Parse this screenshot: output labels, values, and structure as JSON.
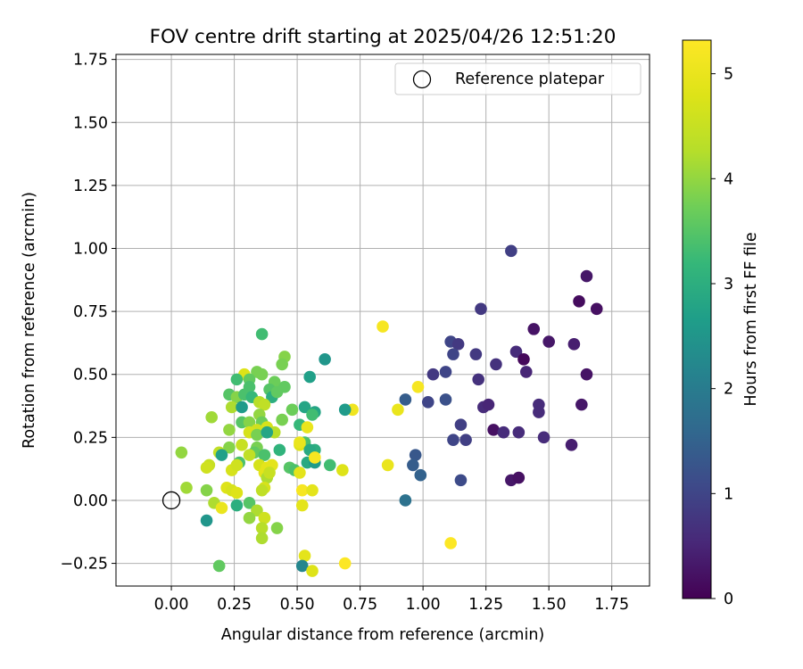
{
  "chart_data": {
    "type": "scatter",
    "title": "FOV centre drift starting at 2025/04/26 12:51:20",
    "xlabel": "Angular distance from reference (arcmin)",
    "ylabel": "Rotation from reference (arcmin)",
    "xlim": [
      -0.22,
      1.9
    ],
    "ylim": [
      -0.34,
      1.77
    ],
    "xticks": [
      "0.00",
      "0.25",
      "0.50",
      "0.75",
      "1.00",
      "1.25",
      "1.50",
      "1.75"
    ],
    "yticks": [
      "−0.25",
      "0.00",
      "0.25",
      "0.50",
      "0.75",
      "1.00",
      "1.25",
      "1.50",
      "1.75"
    ],
    "grid": true,
    "legend_position": "upper-right",
    "legend": [
      {
        "label": "Reference platepar",
        "marker": "open-circle",
        "x": 0.0,
        "y": 0.0
      }
    ],
    "colorbar": {
      "label": "Hours from first FF file",
      "colormap": "viridis",
      "range": [
        0,
        5.32
      ],
      "ticks": [
        "0",
        "1",
        "2",
        "3",
        "4",
        "5"
      ]
    },
    "points": [
      {
        "x": 1.35,
        "y": 0.99,
        "c": 0.9
      },
      {
        "x": 1.65,
        "y": 0.89,
        "c": 0.3
      },
      {
        "x": 1.62,
        "y": 0.79,
        "c": 0.15
      },
      {
        "x": 1.69,
        "y": 0.76,
        "c": 0.2
      },
      {
        "x": 1.23,
        "y": 0.76,
        "c": 0.8
      },
      {
        "x": 1.44,
        "y": 0.68,
        "c": 0.25
      },
      {
        "x": 1.11,
        "y": 0.63,
        "c": 1.0
      },
      {
        "x": 1.14,
        "y": 0.62,
        "c": 0.8
      },
      {
        "x": 1.5,
        "y": 0.63,
        "c": 0.3
      },
      {
        "x": 1.6,
        "y": 0.62,
        "c": 0.4
      },
      {
        "x": 1.37,
        "y": 0.59,
        "c": 0.6
      },
      {
        "x": 1.12,
        "y": 0.58,
        "c": 1.0
      },
      {
        "x": 1.21,
        "y": 0.58,
        "c": 0.8
      },
      {
        "x": 1.4,
        "y": 0.56,
        "c": 0.1
      },
      {
        "x": 1.29,
        "y": 0.54,
        "c": 0.7
      },
      {
        "x": 1.09,
        "y": 0.51,
        "c": 1.0
      },
      {
        "x": 1.41,
        "y": 0.51,
        "c": 0.5
      },
      {
        "x": 1.04,
        "y": 0.5,
        "c": 0.8
      },
      {
        "x": 1.65,
        "y": 0.5,
        "c": 0.25
      },
      {
        "x": 1.22,
        "y": 0.48,
        "c": 0.7
      },
      {
        "x": 1.02,
        "y": 0.39,
        "c": 1.0
      },
      {
        "x": 1.09,
        "y": 0.4,
        "c": 1.2
      },
      {
        "x": 0.93,
        "y": 0.4,
        "c": 1.4
      },
      {
        "x": 1.24,
        "y": 0.37,
        "c": 0.6
      },
      {
        "x": 1.26,
        "y": 0.38,
        "c": 0.5
      },
      {
        "x": 1.46,
        "y": 0.38,
        "c": 0.6
      },
      {
        "x": 1.46,
        "y": 0.35,
        "c": 0.6
      },
      {
        "x": 1.63,
        "y": 0.38,
        "c": 0.3
      },
      {
        "x": 1.15,
        "y": 0.3,
        "c": 0.9
      },
      {
        "x": 1.28,
        "y": 0.28,
        "c": 0.2
      },
      {
        "x": 1.32,
        "y": 0.27,
        "c": 0.6
      },
      {
        "x": 1.38,
        "y": 0.27,
        "c": 0.6
      },
      {
        "x": 1.48,
        "y": 0.25,
        "c": 0.6
      },
      {
        "x": 1.12,
        "y": 0.24,
        "c": 1.0
      },
      {
        "x": 1.17,
        "y": 0.24,
        "c": 0.9
      },
      {
        "x": 1.59,
        "y": 0.22,
        "c": 0.4
      },
      {
        "x": 0.97,
        "y": 0.18,
        "c": 1.3
      },
      {
        "x": 0.96,
        "y": 0.14,
        "c": 1.4
      },
      {
        "x": 0.99,
        "y": 0.1,
        "c": 1.5
      },
      {
        "x": 1.15,
        "y": 0.08,
        "c": 1.1
      },
      {
        "x": 1.35,
        "y": 0.08,
        "c": 0.3
      },
      {
        "x": 1.38,
        "y": 0.09,
        "c": 0.2
      },
      {
        "x": 0.93,
        "y": 0.0,
        "c": 1.8
      },
      {
        "x": 0.84,
        "y": 0.69,
        "c": 5.2
      },
      {
        "x": 0.98,
        "y": 0.45,
        "c": 5.2
      },
      {
        "x": 0.9,
        "y": 0.36,
        "c": 5.0
      },
      {
        "x": 0.72,
        "y": 0.36,
        "c": 5.1
      },
      {
        "x": 0.86,
        "y": 0.14,
        "c": 5.0
      },
      {
        "x": 1.11,
        "y": -0.17,
        "c": 5.3
      },
      {
        "x": 0.36,
        "y": 0.66,
        "c": 3.3
      },
      {
        "x": 0.61,
        "y": 0.56,
        "c": 2.5
      },
      {
        "x": 0.45,
        "y": 0.57,
        "c": 3.9
      },
      {
        "x": 0.44,
        "y": 0.54,
        "c": 3.8
      },
      {
        "x": 0.34,
        "y": 0.51,
        "c": 3.8
      },
      {
        "x": 0.36,
        "y": 0.5,
        "c": 3.8
      },
      {
        "x": 0.29,
        "y": 0.5,
        "c": 4.8
      },
      {
        "x": 0.55,
        "y": 0.49,
        "c": 2.7
      },
      {
        "x": 0.31,
        "y": 0.48,
        "c": 3.6
      },
      {
        "x": 0.41,
        "y": 0.47,
        "c": 3.7
      },
      {
        "x": 0.26,
        "y": 0.48,
        "c": 3.3
      },
      {
        "x": 0.31,
        "y": 0.45,
        "c": 3.4
      },
      {
        "x": 0.45,
        "y": 0.45,
        "c": 3.6
      },
      {
        "x": 0.39,
        "y": 0.44,
        "c": 3.5
      },
      {
        "x": 0.23,
        "y": 0.42,
        "c": 3.5
      },
      {
        "x": 0.26,
        "y": 0.41,
        "c": 3.9
      },
      {
        "x": 0.29,
        "y": 0.42,
        "c": 3.4
      },
      {
        "x": 0.4,
        "y": 0.41,
        "c": 3.0
      },
      {
        "x": 0.42,
        "y": 0.43,
        "c": 3.6
      },
      {
        "x": 0.32,
        "y": 0.41,
        "c": 3.2
      },
      {
        "x": 0.35,
        "y": 0.39,
        "c": 4.3
      },
      {
        "x": 0.24,
        "y": 0.37,
        "c": 4.2
      },
      {
        "x": 0.28,
        "y": 0.37,
        "c": 2.6
      },
      {
        "x": 0.37,
        "y": 0.38,
        "c": 4.4
      },
      {
        "x": 0.16,
        "y": 0.33,
        "c": 4.1
      },
      {
        "x": 0.35,
        "y": 0.34,
        "c": 4.0
      },
      {
        "x": 0.48,
        "y": 0.36,
        "c": 3.7
      },
      {
        "x": 0.53,
        "y": 0.37,
        "c": 2.8
      },
      {
        "x": 0.57,
        "y": 0.35,
        "c": 2.8
      },
      {
        "x": 0.56,
        "y": 0.34,
        "c": 3.3
      },
      {
        "x": 0.69,
        "y": 0.36,
        "c": 2.6
      },
      {
        "x": 0.28,
        "y": 0.31,
        "c": 3.5
      },
      {
        "x": 0.31,
        "y": 0.31,
        "c": 3.9
      },
      {
        "x": 0.36,
        "y": 0.31,
        "c": 3.7
      },
      {
        "x": 0.44,
        "y": 0.32,
        "c": 3.8
      },
      {
        "x": 0.51,
        "y": 0.3,
        "c": 3.2
      },
      {
        "x": 0.54,
        "y": 0.29,
        "c": 5.0
      },
      {
        "x": 0.34,
        "y": 0.28,
        "c": 4.6
      },
      {
        "x": 0.38,
        "y": 0.29,
        "c": 4.7
      },
      {
        "x": 0.41,
        "y": 0.27,
        "c": 4.3
      },
      {
        "x": 0.23,
        "y": 0.28,
        "c": 4.0
      },
      {
        "x": 0.31,
        "y": 0.27,
        "c": 4.7
      },
      {
        "x": 0.34,
        "y": 0.26,
        "c": 3.8
      },
      {
        "x": 0.38,
        "y": 0.27,
        "c": 2.8
      },
      {
        "x": 0.53,
        "y": 0.23,
        "c": 3.4
      },
      {
        "x": 0.51,
        "y": 0.22,
        "c": 4.8
      },
      {
        "x": 0.51,
        "y": 0.23,
        "c": 5.0
      },
      {
        "x": 0.43,
        "y": 0.2,
        "c": 3.1
      },
      {
        "x": 0.23,
        "y": 0.21,
        "c": 3.9
      },
      {
        "x": 0.28,
        "y": 0.22,
        "c": 4.5
      },
      {
        "x": 0.34,
        "y": 0.21,
        "c": 3.8
      },
      {
        "x": 0.33,
        "y": 0.19,
        "c": 3.6
      },
      {
        "x": 0.19,
        "y": 0.19,
        "c": 4.4
      },
      {
        "x": 0.2,
        "y": 0.18,
        "c": 2.7
      },
      {
        "x": 0.31,
        "y": 0.18,
        "c": 4.4
      },
      {
        "x": 0.37,
        "y": 0.18,
        "c": 3.4
      },
      {
        "x": 0.57,
        "y": 0.2,
        "c": 3.0
      },
      {
        "x": 0.55,
        "y": 0.2,
        "c": 2.9
      },
      {
        "x": 0.54,
        "y": 0.15,
        "c": 2.9
      },
      {
        "x": 0.57,
        "y": 0.15,
        "c": 2.6
      },
      {
        "x": 0.57,
        "y": 0.17,
        "c": 5.2
      },
      {
        "x": 0.04,
        "y": 0.19,
        "c": 4.0
      },
      {
        "x": 0.15,
        "y": 0.14,
        "c": 4.5
      },
      {
        "x": 0.14,
        "y": 0.13,
        "c": 4.6
      },
      {
        "x": 0.27,
        "y": 0.15,
        "c": 3.4
      },
      {
        "x": 0.35,
        "y": 0.14,
        "c": 4.7
      },
      {
        "x": 0.38,
        "y": 0.13,
        "c": 4.9
      },
      {
        "x": 0.4,
        "y": 0.14,
        "c": 4.9
      },
      {
        "x": 0.47,
        "y": 0.13,
        "c": 3.5
      },
      {
        "x": 0.49,
        "y": 0.12,
        "c": 3.4
      },
      {
        "x": 0.51,
        "y": 0.11,
        "c": 4.9
      },
      {
        "x": 0.63,
        "y": 0.14,
        "c": 3.3
      },
      {
        "x": 0.68,
        "y": 0.12,
        "c": 4.8
      },
      {
        "x": 0.24,
        "y": 0.12,
        "c": 4.7
      },
      {
        "x": 0.26,
        "y": 0.14,
        "c": 4.6
      },
      {
        "x": 0.37,
        "y": 0.11,
        "c": 4.9
      },
      {
        "x": 0.38,
        "y": 0.09,
        "c": 4.2
      },
      {
        "x": 0.39,
        "y": 0.11,
        "c": 4.5
      },
      {
        "x": 0.06,
        "y": 0.05,
        "c": 4.1
      },
      {
        "x": 0.14,
        "y": 0.04,
        "c": 3.9
      },
      {
        "x": 0.22,
        "y": 0.05,
        "c": 4.8
      },
      {
        "x": 0.24,
        "y": 0.04,
        "c": 4.7
      },
      {
        "x": 0.26,
        "y": 0.03,
        "c": 4.8
      },
      {
        "x": 0.37,
        "y": 0.05,
        "c": 4.7
      },
      {
        "x": 0.36,
        "y": 0.04,
        "c": 4.4
      },
      {
        "x": 0.52,
        "y": 0.04,
        "c": 5.2
      },
      {
        "x": 0.56,
        "y": 0.04,
        "c": 4.9
      },
      {
        "x": 0.17,
        "y": -0.01,
        "c": 4.2
      },
      {
        "x": 0.2,
        "y": -0.03,
        "c": 5.0
      },
      {
        "x": 0.26,
        "y": -0.02,
        "c": 3.0
      },
      {
        "x": 0.31,
        "y": -0.01,
        "c": 3.5
      },
      {
        "x": 0.34,
        "y": -0.04,
        "c": 4.2
      },
      {
        "x": 0.37,
        "y": -0.07,
        "c": 4.6
      },
      {
        "x": 0.31,
        "y": -0.07,
        "c": 4.0
      },
      {
        "x": 0.52,
        "y": -0.02,
        "c": 4.9
      },
      {
        "x": 0.14,
        "y": -0.08,
        "c": 2.5
      },
      {
        "x": 0.36,
        "y": -0.11,
        "c": 4.3
      },
      {
        "x": 0.42,
        "y": -0.11,
        "c": 3.9
      },
      {
        "x": 0.36,
        "y": -0.15,
        "c": 4.2
      },
      {
        "x": 0.53,
        "y": -0.22,
        "c": 4.9
      },
      {
        "x": 0.19,
        "y": -0.26,
        "c": 3.6
      },
      {
        "x": 0.52,
        "y": -0.26,
        "c": 2.2
      },
      {
        "x": 0.69,
        "y": -0.25,
        "c": 5.3
      },
      {
        "x": 0.56,
        "y": -0.28,
        "c": 4.8
      }
    ]
  }
}
